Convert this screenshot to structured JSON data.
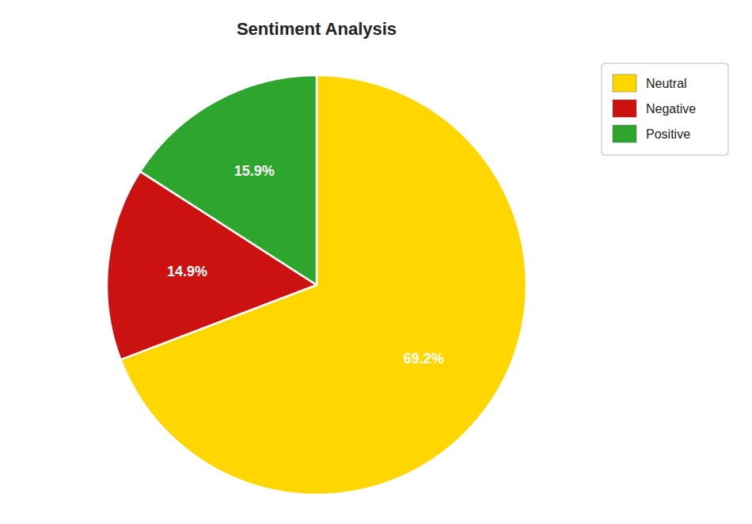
{
  "chart_data": {
    "type": "pie",
    "title": "Sentiment Analysis",
    "categories": [
      "Neutral",
      "Negative",
      "Positive"
    ],
    "values": [
      69.2,
      14.9,
      15.9
    ],
    "value_labels": [
      "69.2%",
      "14.9%",
      "15.9%"
    ],
    "colors": [
      "#FFD700",
      "#CC1111",
      "#2EA62E"
    ],
    "data_labels": true,
    "legend": "top-right"
  }
}
